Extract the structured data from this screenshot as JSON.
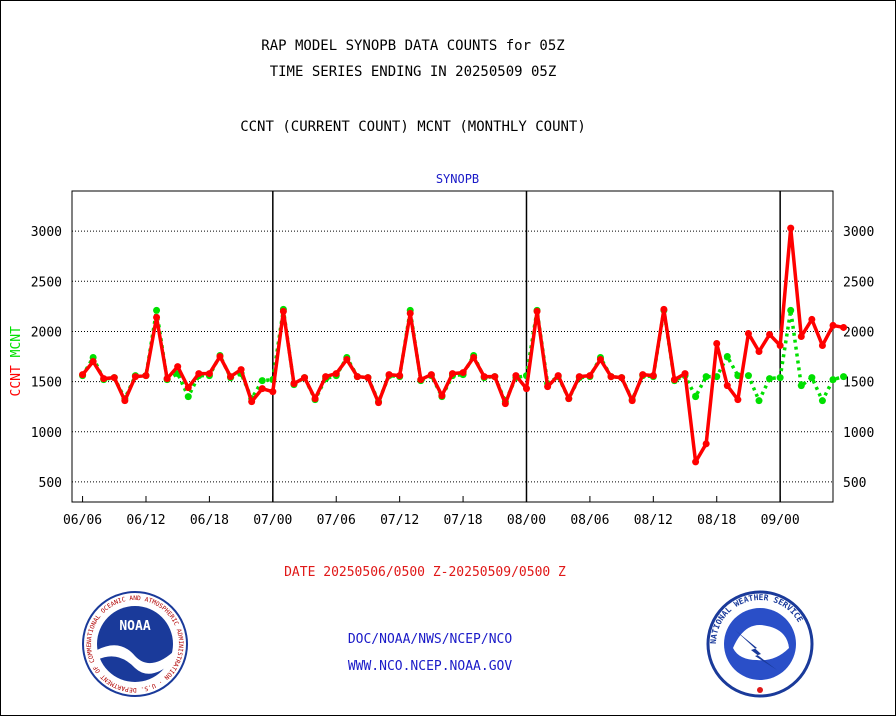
{
  "titles": {
    "line1": "RAP MODEL SYNOPB DATA COUNTS for 05Z",
    "line2": "TIME SERIES ENDING IN 20250509 05Z",
    "line3": "CCNT (CURRENT COUNT) MCNT (MONTHLY COUNT)"
  },
  "footer": {
    "date_range": "DATE 20250506/0500 Z-20250509/0500 Z",
    "org_path": "DOC/NOAA/NWS/NCEP/NCO",
    "website": "WWW.NCO.NCEP.NOAA.GOV"
  },
  "logos": {
    "left": "noaa-logo",
    "right": "national-weather-service-logo",
    "left_ring_text": "NATIONAL OCEANIC AND ATMOSPHERIC ADMINISTRATION · U.S. DEPARTMENT OF COMMERCE",
    "left_center_text": "NOAA",
    "right_ring_text": "NATIONAL WEATHER SERVICE"
  },
  "chart_data": {
    "type": "line",
    "title": "SYNOPB",
    "ylabel_series": [
      "CCNT",
      "MCNT"
    ],
    "ylim": [
      300,
      3400
    ],
    "yticks": [
      500,
      1000,
      1500,
      2000,
      2500,
      3000
    ],
    "xlim": [
      -1,
      71
    ],
    "xtick_labels": [
      "06/06",
      "06/12",
      "06/18",
      "07/00",
      "07/06",
      "07/12",
      "07/18",
      "08/00",
      "08/06",
      "08/12",
      "08/18",
      "09/00"
    ],
    "xtick_positions": [
      0,
      6,
      12,
      18,
      24,
      30,
      36,
      42,
      48,
      54,
      60,
      66
    ],
    "day_boundaries": [
      18,
      42,
      66
    ],
    "grid": true,
    "colors": {
      "CCNT": "#ff0000",
      "MCNT": "#00e000",
      "axes": "#000000",
      "title": "#1a1ac8"
    },
    "series": [
      {
        "name": "CCNT",
        "values": [
          1570,
          1700,
          1530,
          1540,
          1310,
          1550,
          1560,
          2140,
          1530,
          1650,
          1440,
          1580,
          1580,
          1750,
          1550,
          1620,
          1300,
          1430,
          1400,
          2200,
          1480,
          1540,
          1330,
          1550,
          1580,
          1720,
          1550,
          1540,
          1290,
          1570,
          1560,
          2180,
          1520,
          1570,
          1360,
          1580,
          1590,
          1740,
          1550,
          1550,
          1280,
          1560,
          1430,
          2200,
          1450,
          1560,
          1330,
          1550,
          1560,
          1720,
          1550,
          1540,
          1310,
          1570,
          1560,
          2220,
          1520,
          1580,
          700,
          880,
          1880,
          1460,
          1320,
          1980,
          1800,
          1970,
          1860,
          3030,
          1950,
          2120,
          1860,
          2060,
          2040
        ]
      },
      {
        "name": "MCNT",
        "values": [
          1560,
          1740,
          1520,
          1540,
          1330,
          1560,
          1560,
          2210,
          1520,
          1580,
          1350,
          1560,
          1560,
          1760,
          1540,
          1580,
          1330,
          1510,
          1520,
          2220,
          1470,
          1540,
          1320,
          1530,
          1560,
          1740,
          1550,
          1540,
          1300,
          1560,
          1550,
          2210,
          1510,
          1560,
          1350,
          1560,
          1570,
          1760,
          1540,
          1550,
          1300,
          1540,
          1560,
          2210,
          1480,
          1550,
          1330,
          1540,
          1550,
          1740,
          1550,
          1540,
          1320,
          1560,
          1550,
          2210,
          1510,
          1560,
          1350,
          1550,
          1550,
          1750,
          1560,
          1560,
          1310,
          1530,
          1540,
          2210,
          1460,
          1540,
          1310,
          1520,
          1550
        ]
      }
    ]
  }
}
